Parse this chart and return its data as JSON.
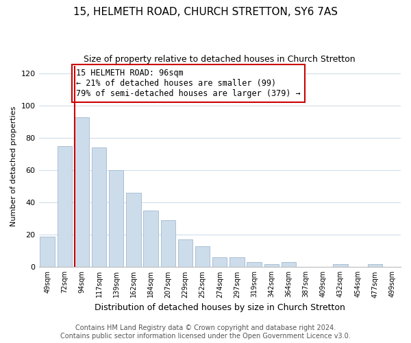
{
  "title": "15, HELMETH ROAD, CHURCH STRETTON, SY6 7AS",
  "subtitle": "Size of property relative to detached houses in Church Stretton",
  "xlabel": "Distribution of detached houses by size in Church Stretton",
  "ylabel": "Number of detached properties",
  "bar_labels": [
    "49sqm",
    "72sqm",
    "94sqm",
    "117sqm",
    "139sqm",
    "162sqm",
    "184sqm",
    "207sqm",
    "229sqm",
    "252sqm",
    "274sqm",
    "297sqm",
    "319sqm",
    "342sqm",
    "364sqm",
    "387sqm",
    "409sqm",
    "432sqm",
    "454sqm",
    "477sqm",
    "499sqm"
  ],
  "bar_values": [
    19,
    75,
    93,
    74,
    60,
    46,
    35,
    29,
    17,
    13,
    6,
    6,
    3,
    2,
    3,
    0,
    0,
    2,
    0,
    2,
    0
  ],
  "bar_color": "#cddceb",
  "bar_edge_color": "#aabfd4",
  "vline_x_index": 2,
  "vline_color": "#cc0000",
  "annotation_text": "15 HELMETH ROAD: 96sqm\n← 21% of detached houses are smaller (99)\n79% of semi-detached houses are larger (379) →",
  "annotation_box_edge_color": "#cc0000",
  "annotation_fontsize": 8.5,
  "ylim": [
    0,
    125
  ],
  "yticks": [
    0,
    20,
    40,
    60,
    80,
    100,
    120
  ],
  "footer_line1": "Contains HM Land Registry data © Crown copyright and database right 2024.",
  "footer_line2": "Contains public sector information licensed under the Open Government Licence v3.0.",
  "title_fontsize": 11,
  "subtitle_fontsize": 9,
  "xlabel_fontsize": 9,
  "ylabel_fontsize": 8,
  "footer_fontsize": 7,
  "grid_color": "#d0dde8"
}
